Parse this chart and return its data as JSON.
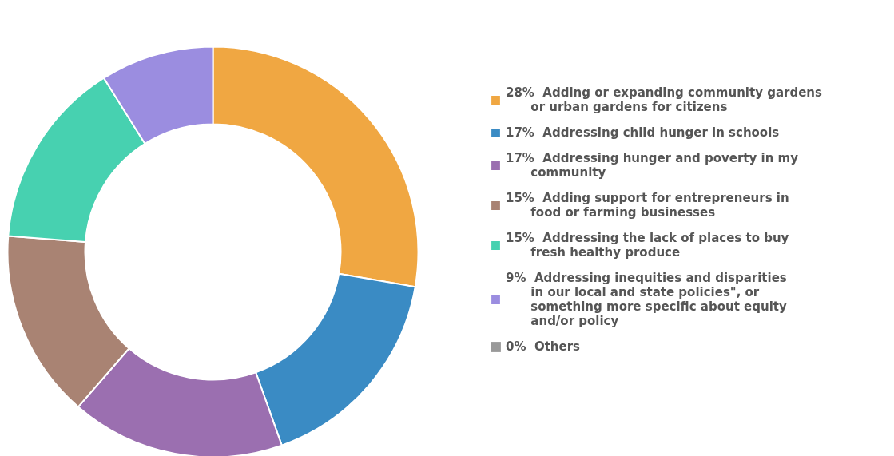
{
  "chart_data": {
    "type": "donut",
    "categories": [
      "Adding or expanding community gardens or urban gardens for citizens",
      "Addressing child hunger in schools",
      "Addressing hunger and poverty in my community",
      "Adding support for entrepreneurs in food or farming businesses",
      "Addressing the lack of places to buy fresh healthy produce",
      "Addressing inequities and disparities in our local and state policies\", or something more specific about equity and/or policy",
      "Others"
    ],
    "values": [
      28,
      17,
      17,
      15,
      15,
      9,
      0
    ],
    "value_labels": [
      "28%",
      "17%",
      "17%",
      "15%",
      "15%",
      "9%",
      "0%"
    ],
    "colors": [
      "#f0a742",
      "#3a8bc4",
      "#9b6fb0",
      "#a98373",
      "#47d1b0",
      "#9b8de0",
      "#999999"
    ],
    "legend": "right"
  }
}
